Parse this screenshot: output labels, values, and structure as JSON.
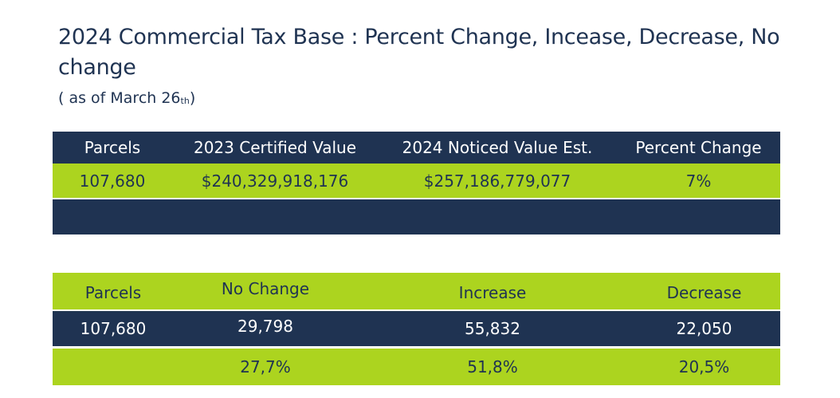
{
  "title": "2024 Commercial Tax Base : Percent Change, Incease, Decrease, No change",
  "subtitle": {
    "prefix": "( as of March 26",
    "suffix_sub": "th",
    "close": ")"
  },
  "table_values": {
    "headers": [
      "Parcels",
      "2023 Certified Value",
      "2024 Noticed Value Est.",
      "Percent Change"
    ],
    "row": [
      "107,680",
      "$240,329,918,176",
      "$257,186,779,077",
      "7%"
    ]
  },
  "table_changes": {
    "headers": [
      "Parcels",
      "No Change",
      "Increase",
      "Decrease"
    ],
    "counts": [
      "107,680",
      "29,798",
      "55,832",
      "22,050"
    ],
    "percents": [
      "",
      "27,7%",
      "51,8%",
      "20,5%"
    ]
  },
  "colors": {
    "navy": "#1f3352",
    "lime": "#acd41f",
    "white": "#ffffff"
  }
}
